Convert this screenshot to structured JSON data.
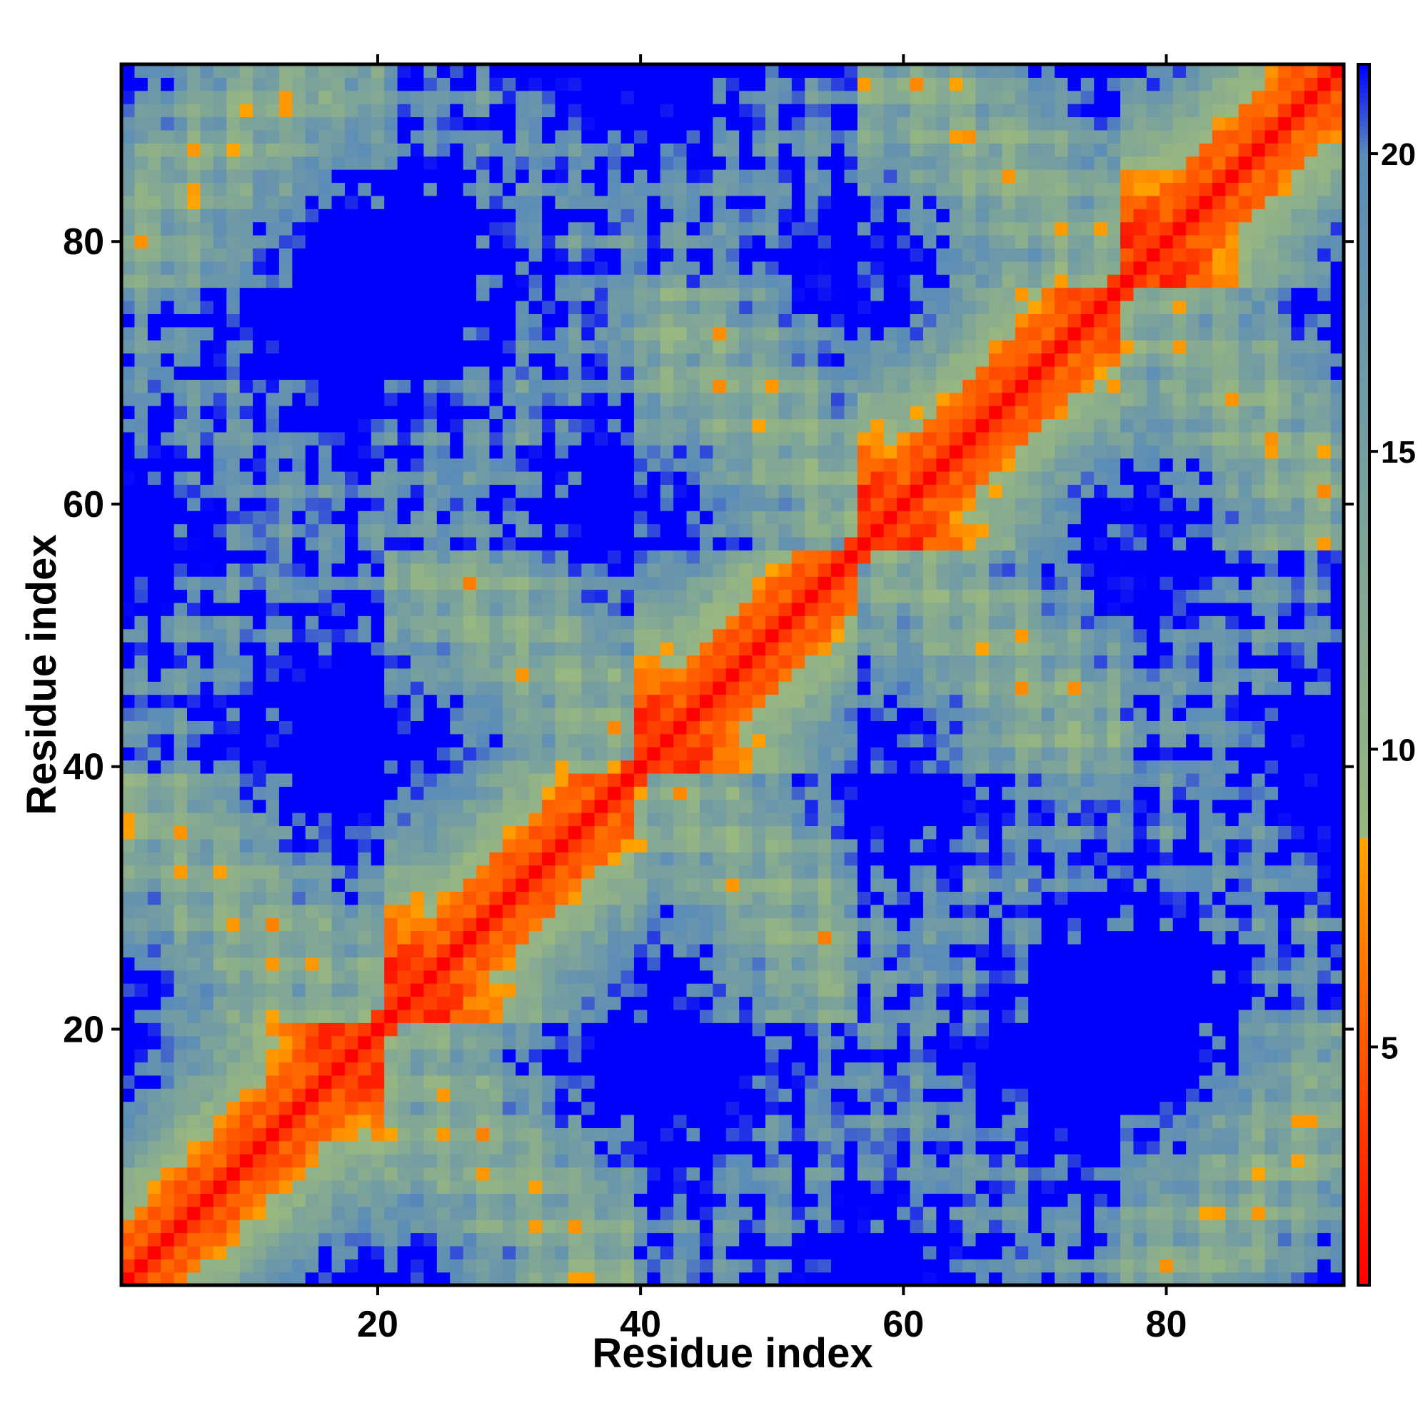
{
  "chart_data": {
    "type": "heatmap",
    "title": "",
    "xlabel": "Residue index",
    "ylabel": "Residue index",
    "n_residues": 93,
    "xlim": [
      1,
      93
    ],
    "ylim": [
      1,
      93
    ],
    "xticks": [
      20,
      40,
      60,
      80
    ],
    "yticks": [
      20,
      40,
      60,
      80
    ],
    "colorbar": {
      "range": [
        1,
        21.5
      ],
      "ticks": [
        5,
        10,
        15,
        20
      ],
      "cutoff": 8.5,
      "stops": [
        {
          "value": 1,
          "color": "#ff0000"
        },
        {
          "value": 8.5,
          "color": "#ffa500"
        },
        {
          "value": 8.5,
          "color": "#99b780"
        },
        {
          "value": 20,
          "color": "#5b8cb8"
        },
        {
          "value": 21.5,
          "color": "#0000ff"
        }
      ],
      "above_max_color": "#0000ff"
    },
    "description_of_values": "Symmetric pairwise residue distance map (Angstrom); diagonal band near zero, anti-diagonal helix-helix contacts, far pairs saturate in blue.",
    "structure": {
      "bundle_segments": [
        [
          1,
          17
        ],
        [
          24,
          38
        ],
        [
          43,
          56
        ],
        [
          60,
          75
        ],
        [
          80,
          93
        ]
      ]
    }
  }
}
